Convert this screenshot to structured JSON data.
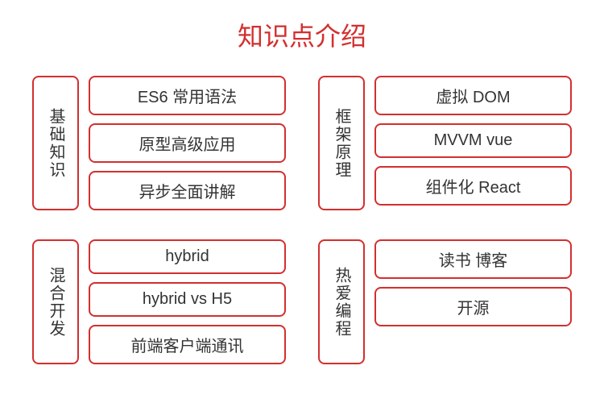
{
  "title": "知识点介绍",
  "title_color": "#d32f2f",
  "border_color": "#d32f2f",
  "text_color": "#333333",
  "background_color": "#ffffff",
  "border_radius": 8,
  "border_width": 2,
  "title_fontsize": 32,
  "label_fontsize": 20,
  "sections": [
    {
      "category": "基础知识",
      "items": [
        "ES6 常用语法",
        "原型高级应用",
        "异步全面讲解"
      ]
    },
    {
      "category": "框架原理",
      "items": [
        "虚拟 DOM",
        "MVVM vue",
        "组件化 React"
      ]
    },
    {
      "category": "混合开发",
      "items": [
        "hybrid",
        "hybrid vs H5",
        "前端客户端通讯"
      ]
    },
    {
      "category": "热爱编程",
      "items": [
        "读书 博客",
        "开源"
      ]
    }
  ]
}
